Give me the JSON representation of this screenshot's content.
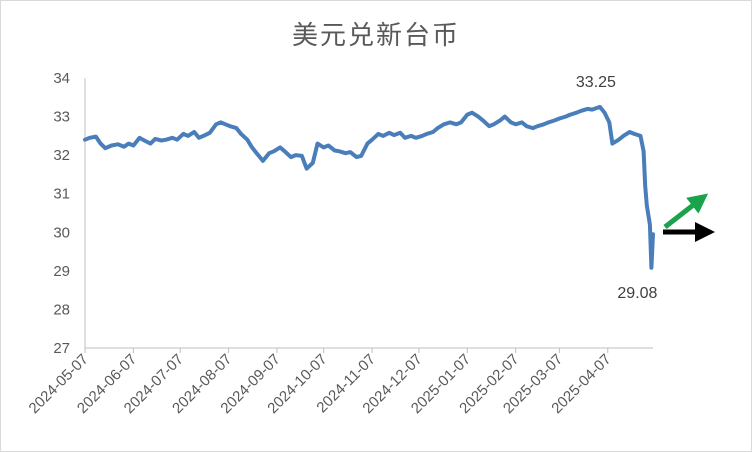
{
  "chart_data": {
    "type": "line",
    "title": "美元兑新台币",
    "xlabel": "",
    "ylabel": "",
    "ylim": [
      27,
      34
    ],
    "yticks": [
      "27",
      "28",
      "29",
      "30",
      "31",
      "32",
      "33",
      "34"
    ],
    "xticks": [
      "2024-05-07",
      "2024-06-07",
      "2024-07-07",
      "2024-08-07",
      "2024-09-07",
      "2024-10-07",
      "2024-11-07",
      "2024-12-07",
      "2025-01-07",
      "2025-02-07",
      "2025-03-07",
      "2025-04-07"
    ],
    "grid": false,
    "legend": "none",
    "line_color": "#4a7ebb",
    "annotations": [
      {
        "text": "33.25",
        "x": "2025-04-02",
        "y": 33.25
      },
      {
        "text": "29.08",
        "x": "2025-05-05",
        "y": 29.08
      }
    ],
    "arrows": [
      {
        "color": "#1aa34a",
        "direction": "up-right"
      },
      {
        "color": "#000000",
        "direction": "right"
      }
    ],
    "series": [
      {
        "values": [
          [
            "2024-05-07",
            32.4
          ],
          [
            "2024-05-10",
            32.45
          ],
          [
            "2024-05-14",
            32.48
          ],
          [
            "2024-05-17",
            32.3
          ],
          [
            "2024-05-20",
            32.18
          ],
          [
            "2024-05-24",
            32.25
          ],
          [
            "2024-05-28",
            32.28
          ],
          [
            "2024-06-01",
            32.22
          ],
          [
            "2024-06-04",
            32.3
          ],
          [
            "2024-06-07",
            32.25
          ],
          [
            "2024-06-11",
            32.45
          ],
          [
            "2024-06-14",
            32.38
          ],
          [
            "2024-06-18",
            32.3
          ],
          [
            "2024-06-21",
            32.42
          ],
          [
            "2024-06-25",
            32.38
          ],
          [
            "2024-06-28",
            32.4
          ],
          [
            "2024-07-02",
            32.45
          ],
          [
            "2024-07-05",
            32.4
          ],
          [
            "2024-07-09",
            32.55
          ],
          [
            "2024-07-12",
            32.5
          ],
          [
            "2024-07-16",
            32.6
          ],
          [
            "2024-07-19",
            32.45
          ],
          [
            "2024-07-23",
            32.52
          ],
          [
            "2024-07-26",
            32.58
          ],
          [
            "2024-07-30",
            32.8
          ],
          [
            "2024-08-02",
            32.85
          ],
          [
            "2024-08-05",
            32.8
          ],
          [
            "2024-08-08",
            32.75
          ],
          [
            "2024-08-12",
            32.7
          ],
          [
            "2024-08-15",
            32.55
          ],
          [
            "2024-08-19",
            32.4
          ],
          [
            "2024-08-22",
            32.2
          ],
          [
            "2024-08-26",
            32.0
          ],
          [
            "2024-08-29",
            31.85
          ],
          [
            "2024-09-02",
            32.05
          ],
          [
            "2024-09-05",
            32.1
          ],
          [
            "2024-09-09",
            32.2
          ],
          [
            "2024-09-12",
            32.1
          ],
          [
            "2024-09-16",
            31.95
          ],
          [
            "2024-09-19",
            32.0
          ],
          [
            "2024-09-23",
            31.98
          ],
          [
            "2024-09-26",
            31.65
          ],
          [
            "2024-09-30",
            31.8
          ],
          [
            "2024-10-03",
            32.3
          ],
          [
            "2024-10-07",
            32.2
          ],
          [
            "2024-10-10",
            32.25
          ],
          [
            "2024-10-14",
            32.12
          ],
          [
            "2024-10-17",
            32.1
          ],
          [
            "2024-10-21",
            32.05
          ],
          [
            "2024-10-24",
            32.08
          ],
          [
            "2024-10-28",
            31.95
          ],
          [
            "2024-10-31",
            31.98
          ],
          [
            "2024-11-04",
            32.3
          ],
          [
            "2024-11-07",
            32.4
          ],
          [
            "2024-11-11",
            32.55
          ],
          [
            "2024-11-14",
            32.5
          ],
          [
            "2024-11-18",
            32.58
          ],
          [
            "2024-11-21",
            32.52
          ],
          [
            "2024-11-25",
            32.58
          ],
          [
            "2024-11-28",
            32.45
          ],
          [
            "2024-12-02",
            32.5
          ],
          [
            "2024-12-05",
            32.45
          ],
          [
            "2024-12-09",
            32.5
          ],
          [
            "2024-12-12",
            32.55
          ],
          [
            "2024-12-16",
            32.6
          ],
          [
            "2024-12-19",
            32.7
          ],
          [
            "2024-12-23",
            32.8
          ],
          [
            "2024-12-27",
            32.85
          ],
          [
            "2024-12-31",
            32.8
          ],
          [
            "2025-01-03",
            32.85
          ],
          [
            "2025-01-07",
            33.05
          ],
          [
            "2025-01-10",
            33.1
          ],
          [
            "2025-01-14",
            33.0
          ],
          [
            "2025-01-17",
            32.9
          ],
          [
            "2025-01-21",
            32.75
          ],
          [
            "2025-01-24",
            32.8
          ],
          [
            "2025-01-28",
            32.9
          ],
          [
            "2025-01-31",
            33.0
          ],
          [
            "2025-02-04",
            32.85
          ],
          [
            "2025-02-07",
            32.8
          ],
          [
            "2025-02-11",
            32.85
          ],
          [
            "2025-02-14",
            32.75
          ],
          [
            "2025-02-18",
            32.7
          ],
          [
            "2025-02-21",
            32.75
          ],
          [
            "2025-02-25",
            32.8
          ],
          [
            "2025-02-28",
            32.85
          ],
          [
            "2025-03-04",
            32.9
          ],
          [
            "2025-03-07",
            32.95
          ],
          [
            "2025-03-11",
            33.0
          ],
          [
            "2025-03-14",
            33.05
          ],
          [
            "2025-03-18",
            33.1
          ],
          [
            "2025-03-21",
            33.15
          ],
          [
            "2025-03-25",
            33.2
          ],
          [
            "2025-03-28",
            33.18
          ],
          [
            "2025-04-02",
            33.25
          ],
          [
            "2025-04-05",
            33.1
          ],
          [
            "2025-04-08",
            32.85
          ],
          [
            "2025-04-10",
            32.3
          ],
          [
            "2025-04-14",
            32.4
          ],
          [
            "2025-04-17",
            32.5
          ],
          [
            "2025-04-21",
            32.6
          ],
          [
            "2025-04-24",
            32.55
          ],
          [
            "2025-04-28",
            32.5
          ],
          [
            "2025-04-30",
            32.1
          ],
          [
            "2025-05-01",
            31.2
          ],
          [
            "2025-05-02",
            30.7
          ],
          [
            "2025-05-04",
            30.2
          ],
          [
            "2025-05-05",
            29.08
          ],
          [
            "2025-05-06",
            29.95
          ]
        ]
      }
    ]
  }
}
